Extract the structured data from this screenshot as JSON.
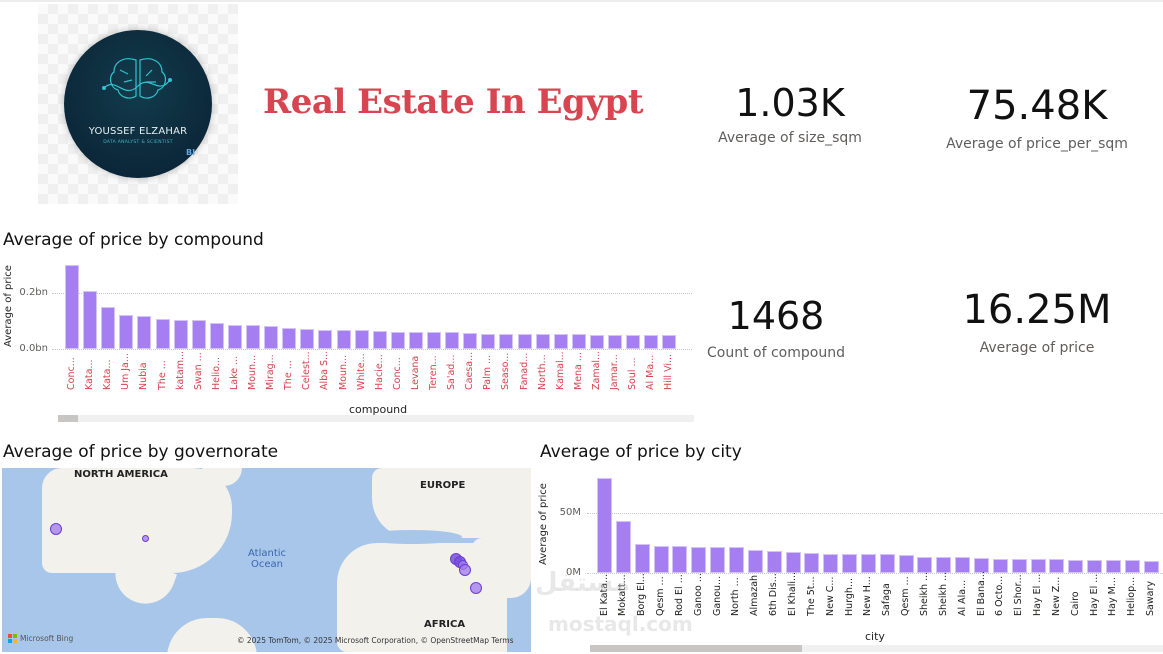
{
  "header": {
    "logo": {
      "name": "YOUSSEF ELZAHAR",
      "subtitle": "DATA ANALYST & SCIENTIST",
      "badge": "BI"
    },
    "title": "Real Estate In Egypt",
    "title_color": "#d64550"
  },
  "cards": [
    {
      "value": "1.03K",
      "label": "Average of size_sqm"
    },
    {
      "value": "75.48K",
      "label": "Average of price_per_sqm"
    },
    {
      "value": "1468",
      "label": "Count of compound"
    },
    {
      "value": "16.25M",
      "label": "Average of price"
    }
  ],
  "compound_chart": {
    "title": "Average of price by compound",
    "ylabel": "Average of price",
    "xlabel": "compound",
    "yticks": [
      "0.2bn",
      "0.0bn"
    ],
    "bar_color": "#a57ef2",
    "label_color": "#d64550"
  },
  "governorate_map": {
    "title": "Average of price by governorate",
    "labels": {
      "north_america": "NORTH AMERICA",
      "europe": "EUROPE",
      "africa": "AFRICA",
      "atlantic1": "Atlantic\nOcean",
      "atlantic2": "Atlantic\nOcean"
    },
    "bing": "Microsoft Bing",
    "attribution": "© 2025 TomTom, © 2025 Microsoft Corporation, © OpenStreetMap  Terms"
  },
  "city_chart": {
    "title": "Average of price by city",
    "ylabel": "Average of price",
    "xlabel": "city",
    "yticks": [
      "50M",
      "0M"
    ],
    "bar_color": "#a57ef2",
    "label_color": "#252423"
  },
  "watermark": {
    "arabic": "مستقل",
    "latin": "mostaql.com"
  },
  "chart_data": [
    {
      "type": "bar",
      "title": "Average of price by compound",
      "xlabel": "compound",
      "ylabel": "Average of price",
      "ylim": [
        0,
        0.3
      ],
      "unit": "bn",
      "categories": [
        "Conc...",
        "Kata...",
        "Kata...",
        "Um Ja...",
        "Nubia",
        "The ...",
        "katam...",
        "Swan ...",
        "Helio...",
        "Lake ...",
        "Moun...",
        "Mirag...",
        "The ...",
        "Celest...",
        "Alba S...",
        "Moun...",
        "White...",
        "Hacie...",
        "Conc...",
        "Levana",
        "Teren...",
        "Sa'ad...",
        "Caesa...",
        "Palm ...",
        "Seaso...",
        "Fanad...",
        "North...",
        "Kamal...",
        "Mena ...",
        "Zamal...",
        "Jamar...",
        "Soul ...",
        "Al Ma...",
        "Hill Vi..."
      ],
      "values": [
        0.3,
        0.207,
        0.15,
        0.121,
        0.118,
        0.107,
        0.104,
        0.104,
        0.093,
        0.086,
        0.086,
        0.082,
        0.075,
        0.071,
        0.068,
        0.068,
        0.068,
        0.064,
        0.061,
        0.061,
        0.061,
        0.059,
        0.057,
        0.054,
        0.054,
        0.054,
        0.052,
        0.052,
        0.052,
        0.05,
        0.05,
        0.05,
        0.05,
        0.05
      ]
    },
    {
      "type": "bar",
      "title": "Average of price by city",
      "xlabel": "city",
      "ylabel": "Average of price",
      "ylim": [
        0,
        80
      ],
      "unit": "M",
      "categories": [
        "El Kata...",
        "Mokatt...",
        "Borg El...",
        "Qesm ...",
        "Rod El ...",
        "Ganoo ...",
        "Ganou...",
        "North ...",
        "Almazah",
        "6th Dis...",
        "El Khali...",
        "The 5t...",
        "New C...",
        "Hurgh...",
        "New H...",
        "Safaga",
        "Qesm ...",
        "Sheikh ...",
        "Sheikh ...",
        "Al Ala...",
        "El Bana...",
        "6 Octo...",
        "El Shor...",
        "Hay El ...",
        "New Z...",
        "Cairo",
        "Hay El ...",
        "Hay M...",
        "Heliop...",
        "Sawary"
      ],
      "values": [
        79,
        43,
        24,
        22.5,
        22.5,
        22,
        21.5,
        21.5,
        19,
        18,
        17.5,
        16.5,
        16,
        15.5,
        15.5,
        15.5,
        15,
        13.5,
        13,
        13,
        12.5,
        12,
        12,
        11.5,
        11.5,
        11,
        10.5,
        10.5,
        10.5,
        10
      ]
    },
    {
      "type": "map",
      "title": "Average of price by governorate",
      "points": [
        {
          "region": "US West Coast",
          "size": "medium"
        },
        {
          "region": "US Central",
          "size": "small"
        },
        {
          "region": "Egypt North (cluster)",
          "size": "large-cluster"
        },
        {
          "region": "Egypt Red Sea",
          "size": "medium"
        },
        {
          "region": "Sudan/Red Sea south",
          "size": "medium"
        }
      ]
    }
  ]
}
